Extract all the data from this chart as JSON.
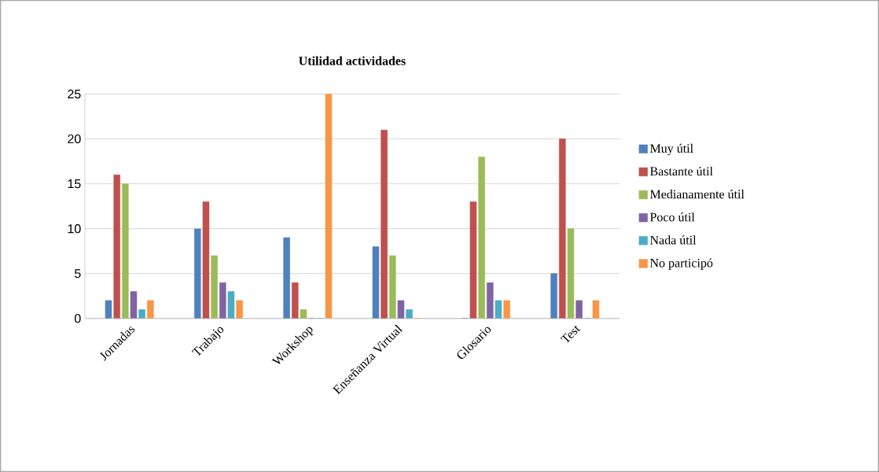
{
  "chart_data": {
    "type": "bar",
    "title": "Utilidad actividades",
    "categories": [
      "Jornadas",
      "Trabajo",
      "Workshop",
      "Enseñanza Virtual",
      "Glosario",
      "Test"
    ],
    "series": [
      {
        "name": "Muy útil",
        "color": "#4f81bd",
        "values": [
          2,
          10,
          9,
          8,
          0,
          5
        ]
      },
      {
        "name": "Bastante útil",
        "color": "#c0504d",
        "values": [
          16,
          13,
          4,
          21,
          13,
          20
        ]
      },
      {
        "name": "Medianamente útil",
        "color": "#9bbb59",
        "values": [
          15,
          7,
          1,
          7,
          18,
          10
        ]
      },
      {
        "name": "Poco útil",
        "color": "#8064a2",
        "values": [
          3,
          4,
          0,
          2,
          4,
          2
        ]
      },
      {
        "name": "Nada útil",
        "color": "#4bacc6",
        "values": [
          1,
          3,
          0,
          1,
          2,
          0
        ]
      },
      {
        "name": "No participó",
        "color": "#f79646",
        "values": [
          2,
          2,
          25,
          0,
          2,
          2
        ]
      }
    ],
    "ylim": [
      0,
      25
    ],
    "yticks": [
      0,
      5,
      10,
      15,
      20,
      25
    ],
    "grid": "y",
    "legend": "right"
  }
}
